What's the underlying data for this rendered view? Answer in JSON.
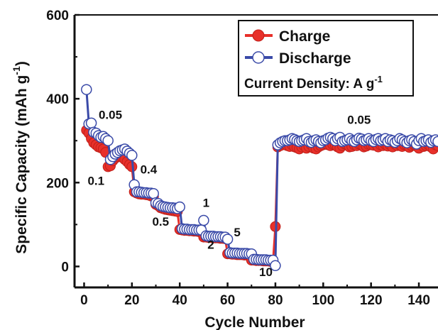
{
  "chart_data": {
    "type": "line",
    "title": "",
    "xlabel": "Cycle Number",
    "ylabel": "Specific Capacity (mAh g",
    "ylabel_sup": "-1",
    "ylabel_close": ")",
    "xlim": [
      -4,
      148
    ],
    "ylim": [
      -50,
      600
    ],
    "xticks": [
      0,
      20,
      40,
      60,
      80,
      100,
      120,
      140
    ],
    "yticks": [
      0,
      200,
      400,
      600
    ],
    "legend": {
      "placement": "top-right",
      "note_text": "Current Density: A g",
      "note_sup": "-1"
    },
    "annotations": [
      {
        "text": "0.05",
        "x": 11,
        "y": 352
      },
      {
        "text": "0.1",
        "x": 5,
        "y": 195
      },
      {
        "text": "0.4",
        "x": 27,
        "y": 222
      },
      {
        "text": "1",
        "x": 51,
        "y": 142
      },
      {
        "text": "0.5",
        "x": 32,
        "y": 97
      },
      {
        "text": "5",
        "x": 64,
        "y": 72
      },
      {
        "text": "2",
        "x": 53,
        "y": 42
      },
      {
        "text": "10",
        "x": 76,
        "y": -23
      },
      {
        "text": "0.05",
        "x": 115,
        "y": 340
      }
    ],
    "series": [
      {
        "name": "Charge",
        "color": "#e8302a",
        "marker": "filled",
        "x": [
          1,
          2,
          3,
          4,
          5,
          6,
          7,
          8,
          9,
          10,
          11,
          12,
          13,
          14,
          15,
          16,
          17,
          18,
          19,
          20,
          21,
          22,
          23,
          24,
          25,
          26,
          27,
          28,
          29,
          30,
          31,
          32,
          33,
          34,
          35,
          36,
          37,
          38,
          39,
          40,
          41,
          42,
          43,
          44,
          45,
          46,
          47,
          48,
          49,
          50,
          51,
          52,
          53,
          54,
          55,
          56,
          57,
          58,
          59,
          60,
          61,
          62,
          63,
          64,
          65,
          66,
          67,
          68,
          69,
          70,
          71,
          72,
          73,
          74,
          75,
          76,
          77,
          78,
          79,
          80,
          81,
          82,
          83,
          84,
          85,
          86,
          87,
          88,
          89,
          90,
          91,
          92,
          93,
          94,
          95,
          96,
          97,
          98,
          99,
          100,
          101,
          102,
          103,
          104,
          105,
          106,
          107,
          108,
          109,
          110,
          111,
          112,
          113,
          114,
          115,
          116,
          117,
          118,
          119,
          120,
          121,
          122,
          123,
          124,
          125,
          126,
          127,
          128,
          129,
          130,
          131,
          132,
          133,
          134,
          135,
          136,
          137,
          138,
          139,
          140,
          141,
          142,
          143,
          144,
          145,
          146,
          147,
          148
        ],
        "y": [
          325,
          318,
          305,
          295,
          290,
          285,
          283,
          280,
          272,
          238,
          240,
          252,
          258,
          262,
          265,
          260,
          255,
          250,
          243,
          238,
          178,
          175,
          173,
          172,
          172,
          171,
          170,
          168,
          167,
          148,
          145,
          140,
          138,
          136,
          135,
          134,
          133,
          132,
          131,
          88,
          87,
          86,
          86,
          85,
          85,
          84,
          84,
          83,
          83,
          70,
          70,
          69,
          69,
          68,
          68,
          68,
          67,
          67,
          66,
          30,
          30,
          29,
          29,
          28,
          28,
          28,
          27,
          27,
          27,
          15,
          15,
          14,
          14,
          14,
          13,
          13,
          13,
          12,
          12,
          95,
          285,
          288,
          290,
          292,
          288,
          286,
          290,
          285,
          283,
          280,
          285,
          288,
          282,
          286,
          290,
          282,
          280,
          285,
          288,
          290,
          292,
          290,
          288,
          291,
          290,
          285,
          282,
          288,
          292,
          290,
          285,
          286,
          290,
          288,
          292,
          290,
          285,
          287,
          291,
          290,
          289,
          292,
          285,
          290,
          288,
          291,
          287,
          290,
          285,
          292,
          288,
          290,
          286,
          290,
          289,
          284,
          288,
          290,
          287,
          282,
          290,
          286,
          288,
          290,
          285,
          280,
          290,
          288
        ]
      },
      {
        "name": "Discharge",
        "color": "#3a4aa8",
        "marker": "open",
        "x": [
          1,
          2,
          3,
          4,
          5,
          6,
          7,
          8,
          9,
          10,
          11,
          12,
          13,
          14,
          15,
          16,
          17,
          18,
          19,
          20,
          21,
          22,
          23,
          24,
          25,
          26,
          27,
          28,
          29,
          30,
          31,
          32,
          33,
          34,
          35,
          36,
          37,
          38,
          39,
          40,
          41,
          42,
          43,
          44,
          45,
          46,
          47,
          48,
          49,
          50,
          51,
          52,
          53,
          54,
          55,
          56,
          57,
          58,
          59,
          60,
          61,
          62,
          63,
          64,
          65,
          66,
          67,
          68,
          69,
          70,
          71,
          72,
          73,
          74,
          75,
          76,
          77,
          78,
          79,
          80,
          81,
          82,
          83,
          84,
          85,
          86,
          87,
          88,
          89,
          90,
          91,
          92,
          93,
          94,
          95,
          96,
          97,
          98,
          99,
          100,
          101,
          102,
          103,
          104,
          105,
          106,
          107,
          108,
          109,
          110,
          111,
          112,
          113,
          114,
          115,
          116,
          117,
          118,
          119,
          120,
          121,
          122,
          123,
          124,
          125,
          126,
          127,
          128,
          129,
          130,
          131,
          132,
          133,
          134,
          135,
          136,
          137,
          138,
          139,
          140,
          141,
          142,
          143,
          144,
          145,
          146,
          147,
          148
        ],
        "y": [
          422,
          340,
          342,
          320,
          318,
          312,
          308,
          310,
          305,
          300,
          255,
          262,
          268,
          272,
          276,
          278,
          280,
          275,
          270,
          265,
          195,
          178,
          178,
          177,
          176,
          176,
          175,
          175,
          174,
          152,
          150,
          145,
          143,
          142,
          141,
          140,
          140,
          139,
          138,
          142,
          90,
          89,
          89,
          88,
          88,
          88,
          87,
          87,
          87,
          110,
          73,
          72,
          72,
          72,
          71,
          71,
          71,
          70,
          70,
          65,
          33,
          32,
          32,
          32,
          31,
          31,
          31,
          31,
          30,
          30,
          17,
          17,
          16,
          16,
          16,
          16,
          15,
          15,
          15,
          2,
          290,
          295,
          298,
          300,
          300,
          302,
          305,
          303,
          300,
          298,
          300,
          302,
          305,
          298,
          296,
          300,
          302,
          298,
          295,
          300,
          302,
          306,
          308,
          305,
          300,
          305,
          308,
          298,
          300,
          302,
          305,
          300,
          298,
          302,
          306,
          304,
          300,
          302,
          305,
          300,
          298,
          303,
          305,
          300,
          302,
          305,
          298,
          302,
          300,
          296,
          300,
          305,
          302,
          298,
          295,
          300,
          302,
          298,
          292,
          300,
          305,
          298,
          300,
          302,
          296,
          300,
          302,
          298
        ]
      }
    ]
  }
}
